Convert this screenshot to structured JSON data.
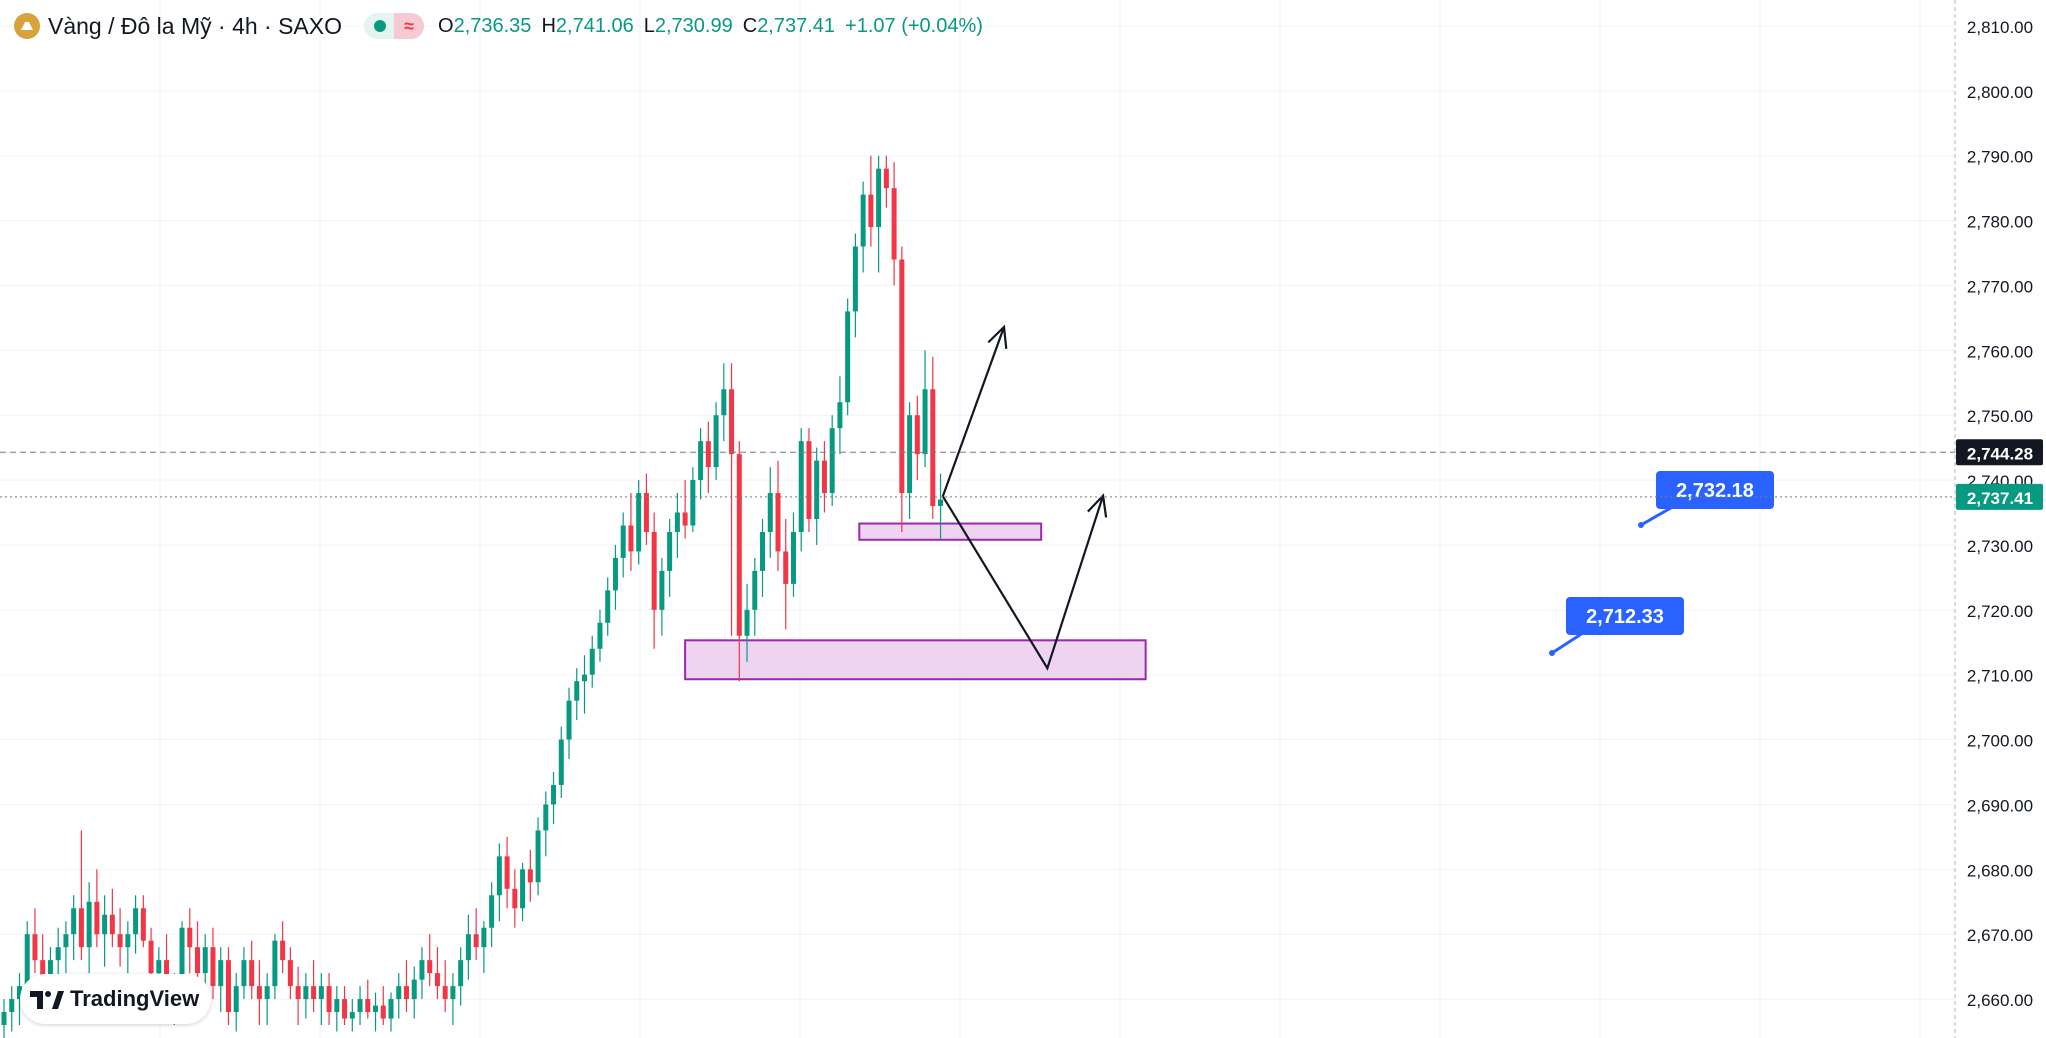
{
  "header": {
    "title": "Vàng / Đô la Mỹ · 4h · SAXO",
    "ohlc": [
      {
        "k": "O",
        "v": "2,736.35"
      },
      {
        "k": "H",
        "v": "2,741.06"
      },
      {
        "k": "L",
        "v": "2,730.99"
      },
      {
        "k": "C",
        "v": "2,737.41"
      }
    ],
    "change": "+1.07 (+0.04%)"
  },
  "watermark": "TradingView",
  "colors": {
    "up": "#089981",
    "down": "#f23645",
    "zone_fill": "#ebc9ee",
    "zone_stroke": "#9c27b0",
    "label_blue": "#2962ff"
  },
  "chart_data": {
    "type": "candlestick",
    "y_range": [
      2654,
      2814
    ],
    "y_ticks": [
      "2,660.00",
      "2,670.00",
      "2,680.00",
      "2,690.00",
      "2,700.00",
      "2,710.00",
      "2,720.00",
      "2,730.00",
      "2,740.00",
      "2,750.00",
      "2,760.00",
      "2,770.00",
      "2,780.00",
      "2,790.00",
      "2,800.00",
      "2,810.00"
    ],
    "y_tick_values": [
      2660,
      2670,
      2680,
      2690,
      2700,
      2710,
      2720,
      2730,
      2740,
      2750,
      2760,
      2770,
      2780,
      2790,
      2800,
      2810
    ],
    "price_labels": [
      {
        "value": 2744.28,
        "text": "2,744.28",
        "style": "dark"
      },
      {
        "value": 2737.41,
        "text": "2,737.41",
        "style": "green"
      }
    ],
    "candles": [
      [
        2656,
        2660,
        2653,
        2658
      ],
      [
        2658,
        2662,
        2655,
        2660
      ],
      [
        2660,
        2664,
        2656,
        2662
      ],
      [
        2662,
        2672,
        2660,
        2670
      ],
      [
        2670,
        2674,
        2664,
        2666
      ],
      [
        2666,
        2670,
        2658,
        2662
      ],
      [
        2662,
        2668,
        2659,
        2666
      ],
      [
        2666,
        2671,
        2662,
        2668
      ],
      [
        2668,
        2672,
        2664,
        2670
      ],
      [
        2670,
        2676,
        2666,
        2674
      ],
      [
        2674,
        2686,
        2666,
        2668
      ],
      [
        2668,
        2678,
        2664,
        2675
      ],
      [
        2675,
        2680,
        2668,
        2670
      ],
      [
        2670,
        2676,
        2665,
        2673
      ],
      [
        2673,
        2677,
        2668,
        2670
      ],
      [
        2670,
        2674,
        2665,
        2668
      ],
      [
        2668,
        2672,
        2664,
        2670
      ],
      [
        2670,
        2676,
        2667,
        2674
      ],
      [
        2674,
        2676,
        2668,
        2669
      ],
      [
        2669,
        2671,
        2662,
        2664
      ],
      [
        2664,
        2668,
        2660,
        2666
      ],
      [
        2666,
        2670,
        2658,
        2660
      ],
      [
        2660,
        2664,
        2656,
        2662
      ],
      [
        2662,
        2672,
        2660,
        2671
      ],
      [
        2671,
        2674,
        2664,
        2668
      ],
      [
        2668,
        2672,
        2662,
        2664
      ],
      [
        2664,
        2670,
        2660,
        2668
      ],
      [
        2668,
        2671,
        2660,
        2662
      ],
      [
        2662,
        2668,
        2658,
        2666
      ],
      [
        2666,
        2668,
        2656,
        2658
      ],
      [
        2658,
        2664,
        2655,
        2662
      ],
      [
        2662,
        2668,
        2660,
        2666
      ],
      [
        2666,
        2669,
        2660,
        2662
      ],
      [
        2662,
        2666,
        2656,
        2660
      ],
      [
        2660,
        2664,
        2656,
        2662
      ],
      [
        2662,
        2670,
        2660,
        2669
      ],
      [
        2669,
        2672,
        2664,
        2666
      ],
      [
        2666,
        2668,
        2660,
        2662
      ],
      [
        2662,
        2665,
        2656,
        2660
      ],
      [
        2660,
        2664,
        2657,
        2662
      ],
      [
        2662,
        2666,
        2658,
        2660
      ],
      [
        2660,
        2664,
        2656,
        2662
      ],
      [
        2662,
        2664,
        2656,
        2658
      ],
      [
        2658,
        2662,
        2655,
        2660
      ],
      [
        2660,
        2662,
        2656,
        2657
      ],
      [
        2657,
        2660,
        2655,
        2658
      ],
      [
        2658,
        2662,
        2656,
        2660
      ],
      [
        2660,
        2663,
        2657,
        2658
      ],
      [
        2658,
        2661,
        2655,
        2659
      ],
      [
        2659,
        2662,
        2656,
        2657
      ],
      [
        2657,
        2661,
        2655,
        2660
      ],
      [
        2660,
        2664,
        2657,
        2662
      ],
      [
        2662,
        2666,
        2658,
        2660
      ],
      [
        2660,
        2665,
        2657,
        2663
      ],
      [
        2663,
        2668,
        2660,
        2666
      ],
      [
        2666,
        2670,
        2662,
        2664
      ],
      [
        2664,
        2668,
        2660,
        2662
      ],
      [
        2662,
        2666,
        2658,
        2660
      ],
      [
        2660,
        2664,
        2656,
        2662
      ],
      [
        2662,
        2668,
        2659,
        2666
      ],
      [
        2666,
        2673,
        2663,
        2670
      ],
      [
        2670,
        2674,
        2666,
        2668
      ],
      [
        2668,
        2672,
        2664,
        2671
      ],
      [
        2671,
        2678,
        2668,
        2676
      ],
      [
        2676,
        2684,
        2672,
        2682
      ],
      [
        2682,
        2685,
        2674,
        2677
      ],
      [
        2677,
        2680,
        2671,
        2674
      ],
      [
        2674,
        2681,
        2672,
        2680
      ],
      [
        2680,
        2683,
        2675,
        2678
      ],
      [
        2678,
        2688,
        2676,
        2686
      ],
      [
        2686,
        2692,
        2682,
        2690
      ],
      [
        2690,
        2695,
        2687,
        2693
      ],
      [
        2693,
        2702,
        2691,
        2700
      ],
      [
        2700,
        2708,
        2697,
        2706
      ],
      [
        2706,
        2711,
        2703,
        2709
      ],
      [
        2709,
        2713,
        2704,
        2710
      ],
      [
        2710,
        2716,
        2708,
        2714
      ],
      [
        2714,
        2720,
        2712,
        2718
      ],
      [
        2718,
        2725,
        2716,
        2723
      ],
      [
        2723,
        2730,
        2720,
        2728
      ],
      [
        2728,
        2735,
        2725,
        2733
      ],
      [
        2733,
        2738,
        2726,
        2729
      ],
      [
        2729,
        2740,
        2727,
        2738
      ],
      [
        2738,
        2741,
        2730,
        2732
      ],
      [
        2732,
        2735,
        2714,
        2720
      ],
      [
        2720,
        2728,
        2716,
        2726
      ],
      [
        2726,
        2734,
        2722,
        2732
      ],
      [
        2732,
        2738,
        2728,
        2735
      ],
      [
        2735,
        2740,
        2731,
        2733
      ],
      [
        2733,
        2742,
        2732,
        2740
      ],
      [
        2740,
        2748,
        2737,
        2746
      ],
      [
        2746,
        2749,
        2738,
        2742
      ],
      [
        2742,
        2752,
        2740,
        2750
      ],
      [
        2750,
        2758,
        2746,
        2754
      ],
      [
        2754,
        2758,
        2716,
        2744
      ],
      [
        2744,
        2746,
        2709,
        2716
      ],
      [
        2716,
        2724,
        2712,
        2720
      ],
      [
        2720,
        2728,
        2716,
        2726
      ],
      [
        2726,
        2734,
        2722,
        2732
      ],
      [
        2732,
        2742,
        2728,
        2738
      ],
      [
        2738,
        2743,
        2726,
        2729
      ],
      [
        2729,
        2734,
        2717,
        2724
      ],
      [
        2724,
        2735,
        2722,
        2732
      ],
      [
        2732,
        2748,
        2729,
        2746
      ],
      [
        2746,
        2748,
        2732,
        2734
      ],
      [
        2734,
        2745,
        2730,
        2743
      ],
      [
        2743,
        2746,
        2735,
        2738
      ],
      [
        2738,
        2750,
        2736,
        2748
      ],
      [
        2748,
        2756,
        2744,
        2752
      ],
      [
        2752,
        2768,
        2750,
        2766
      ],
      [
        2766,
        2778,
        2762,
        2776
      ],
      [
        2776,
        2786,
        2772,
        2784
      ],
      [
        2784,
        2790,
        2776,
        2779
      ],
      [
        2779,
        2790,
        2772,
        2788
      ],
      [
        2788,
        2790,
        2782,
        2785
      ],
      [
        2785,
        2789,
        2770,
        2774
      ],
      [
        2774,
        2776,
        2732,
        2738
      ],
      [
        2738,
        2752,
        2734,
        2750
      ],
      [
        2750,
        2753,
        2740,
        2744
      ],
      [
        2744,
        2760,
        2742,
        2754
      ],
      [
        2754,
        2759,
        2734,
        2736
      ],
      [
        2736,
        2741,
        2731,
        2737
      ]
    ],
    "zones": [
      {
        "x0": 88.0,
        "x1": 147.5,
        "y0": 2709.3,
        "y1": 2715.3,
        "label": "2,712.33"
      },
      {
        "x0": 110.5,
        "x1": 134.0,
        "y0": 2730.8,
        "y1": 2733.3,
        "label": "2,732.18"
      }
    ],
    "projections": [
      {
        "path": [
          [
            121.3,
            2737.5
          ],
          [
            129.2,
            2763.6
          ]
        ]
      },
      {
        "path": [
          [
            121.3,
            2737.5
          ],
          [
            134.8,
            2711.0
          ],
          [
            142.0,
            2737.6
          ]
        ]
      }
    ]
  }
}
